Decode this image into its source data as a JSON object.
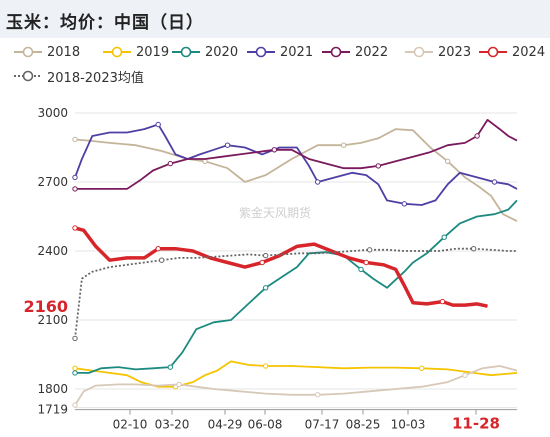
{
  "title": "玉米：均价：中国（日）",
  "watermark": "紫金天风期货",
  "chart_data": {
    "type": "line",
    "title": "玉米：均价：中国（日）",
    "xlabel": "",
    "ylabel": "",
    "ylim": [
      1719,
      3000
    ],
    "yticks": [
      1719,
      1800,
      2100,
      2400,
      2700,
      3000
    ],
    "x_ticks": [
      "02-10",
      "03-20",
      "04-29",
      "06-08",
      "07-17",
      "08-25",
      "10-03",
      "11-28"
    ],
    "highlighted_x_tick": "11-28",
    "last_value_label": "2160",
    "grid": "horizontal",
    "legend_position": "top",
    "series": [
      {
        "name": "2018",
        "color": "#c4b49a",
        "points": [
          [
            0,
            2885
          ],
          [
            8,
            2880
          ],
          [
            20,
            2870
          ],
          [
            35,
            2860
          ],
          [
            50,
            2835
          ],
          [
            65,
            2800
          ],
          [
            75,
            2790
          ],
          [
            88,
            2760
          ],
          [
            98,
            2700
          ],
          [
            110,
            2730
          ],
          [
            125,
            2800
          ],
          [
            140,
            2860
          ],
          [
            155,
            2860
          ],
          [
            165,
            2870
          ],
          [
            175,
            2890
          ],
          [
            185,
            2930
          ],
          [
            195,
            2925
          ],
          [
            205,
            2850
          ],
          [
            215,
            2790
          ],
          [
            225,
            2720
          ],
          [
            233,
            2680
          ],
          [
            240,
            2640
          ],
          [
            247,
            2560
          ],
          [
            255,
            2530
          ]
        ]
      },
      {
        "name": "2019",
        "color": "#f5c400",
        "points": [
          [
            0,
            1890
          ],
          [
            10,
            1880
          ],
          [
            20,
            1870
          ],
          [
            30,
            1860
          ],
          [
            38,
            1830
          ],
          [
            48,
            1810
          ],
          [
            58,
            1810
          ],
          [
            68,
            1830
          ],
          [
            75,
            1860
          ],
          [
            82,
            1880
          ],
          [
            90,
            1920
          ],
          [
            100,
            1905
          ],
          [
            110,
            1900
          ],
          [
            125,
            1900
          ],
          [
            140,
            1895
          ],
          [
            155,
            1890
          ],
          [
            170,
            1893
          ],
          [
            185,
            1893
          ],
          [
            200,
            1890
          ],
          [
            215,
            1885
          ],
          [
            230,
            1870
          ],
          [
            240,
            1860
          ],
          [
            255,
            1870
          ]
        ]
      },
      {
        "name": "2020",
        "color": "#1b8a80",
        "points": [
          [
            0,
            1870
          ],
          [
            8,
            1870
          ],
          [
            15,
            1890
          ],
          [
            25,
            1895
          ],
          [
            35,
            1885
          ],
          [
            45,
            1890
          ],
          [
            55,
            1895
          ],
          [
            62,
            1960
          ],
          [
            70,
            2060
          ],
          [
            80,
            2090
          ],
          [
            90,
            2100
          ],
          [
            100,
            2170
          ],
          [
            110,
            2240
          ],
          [
            120,
            2290
          ],
          [
            128,
            2330
          ],
          [
            135,
            2390
          ],
          [
            145,
            2395
          ],
          [
            155,
            2380
          ],
          [
            165,
            2320
          ],
          [
            172,
            2280
          ],
          [
            180,
            2240
          ],
          [
            190,
            2310
          ],
          [
            195,
            2350
          ],
          [
            203,
            2390
          ],
          [
            213,
            2460
          ],
          [
            222,
            2520
          ],
          [
            232,
            2550
          ],
          [
            242,
            2560
          ],
          [
            250,
            2580
          ],
          [
            255,
            2620
          ]
        ]
      },
      {
        "name": "2021",
        "color": "#4f3fa4",
        "points": [
          [
            0,
            2720
          ],
          [
            4,
            2800
          ],
          [
            10,
            2900
          ],
          [
            20,
            2915
          ],
          [
            30,
            2915
          ],
          [
            40,
            2930
          ],
          [
            48,
            2950
          ],
          [
            52,
            2900
          ],
          [
            58,
            2820
          ],
          [
            65,
            2800
          ],
          [
            72,
            2820
          ],
          [
            80,
            2840
          ],
          [
            88,
            2860
          ],
          [
            98,
            2850
          ],
          [
            108,
            2820
          ],
          [
            118,
            2850
          ],
          [
            128,
            2850
          ],
          [
            135,
            2770
          ],
          [
            140,
            2700
          ],
          [
            150,
            2720
          ],
          [
            160,
            2740
          ],
          [
            168,
            2730
          ],
          [
            175,
            2690
          ],
          [
            180,
            2620
          ],
          [
            190,
            2605
          ],
          [
            200,
            2600
          ],
          [
            208,
            2620
          ],
          [
            215,
            2690
          ],
          [
            222,
            2740
          ],
          [
            232,
            2720
          ],
          [
            242,
            2700
          ],
          [
            250,
            2690
          ],
          [
            255,
            2670
          ]
        ]
      },
      {
        "name": "2022",
        "color": "#7a1a5c",
        "points": [
          [
            0,
            2670
          ],
          [
            10,
            2670
          ],
          [
            20,
            2670
          ],
          [
            30,
            2670
          ],
          [
            38,
            2710
          ],
          [
            45,
            2750
          ],
          [
            55,
            2780
          ],
          [
            65,
            2800
          ],
          [
            75,
            2800
          ],
          [
            85,
            2810
          ],
          [
            95,
            2820
          ],
          [
            105,
            2830
          ],
          [
            115,
            2840
          ],
          [
            125,
            2840
          ],
          [
            135,
            2800
          ],
          [
            145,
            2780
          ],
          [
            155,
            2760
          ],
          [
            165,
            2760
          ],
          [
            175,
            2770
          ],
          [
            185,
            2790
          ],
          [
            195,
            2810
          ],
          [
            205,
            2830
          ],
          [
            215,
            2860
          ],
          [
            225,
            2870
          ],
          [
            232,
            2900
          ],
          [
            238,
            2970
          ],
          [
            245,
            2930
          ],
          [
            250,
            2900
          ],
          [
            255,
            2880
          ]
        ]
      },
      {
        "name": "2023",
        "color": "#d8c8b8",
        "points": [
          [
            0,
            1730
          ],
          [
            5,
            1790
          ],
          [
            12,
            1815
          ],
          [
            25,
            1820
          ],
          [
            35,
            1820
          ],
          [
            48,
            1815
          ],
          [
            60,
            1820
          ],
          [
            70,
            1810
          ],
          [
            80,
            1800
          ],
          [
            95,
            1790
          ],
          [
            110,
            1780
          ],
          [
            125,
            1775
          ],
          [
            140,
            1775
          ],
          [
            155,
            1780
          ],
          [
            170,
            1790
          ],
          [
            185,
            1800
          ],
          [
            200,
            1810
          ],
          [
            215,
            1830
          ],
          [
            225,
            1860
          ],
          [
            235,
            1890
          ],
          [
            245,
            1900
          ],
          [
            255,
            1880
          ]
        ]
      },
      {
        "name": "2024",
        "color": "#d7262b",
        "points": [
          [
            0,
            2500
          ],
          [
            5,
            2490
          ],
          [
            12,
            2420
          ],
          [
            20,
            2360
          ],
          [
            30,
            2370
          ],
          [
            40,
            2370
          ],
          [
            48,
            2410
          ],
          [
            58,
            2410
          ],
          [
            68,
            2400
          ],
          [
            78,
            2370
          ],
          [
            88,
            2350
          ],
          [
            98,
            2330
          ],
          [
            108,
            2350
          ],
          [
            118,
            2380
          ],
          [
            128,
            2420
          ],
          [
            138,
            2430
          ],
          [
            148,
            2400
          ],
          [
            158,
            2370
          ],
          [
            168,
            2350
          ],
          [
            178,
            2340
          ],
          [
            185,
            2320
          ],
          [
            190,
            2250
          ],
          [
            195,
            2175
          ],
          [
            203,
            2170
          ],
          [
            212,
            2180
          ],
          [
            218,
            2165
          ],
          [
            225,
            2165
          ],
          [
            232,
            2170
          ],
          [
            238,
            2160
          ]
        ]
      },
      {
        "name": "2018-2023均值",
        "color": "#666666",
        "dashed": true,
        "points": [
          [
            0,
            2020
          ],
          [
            4,
            2280
          ],
          [
            10,
            2310
          ],
          [
            20,
            2330
          ],
          [
            30,
            2340
          ],
          [
            40,
            2350
          ],
          [
            50,
            2360
          ],
          [
            60,
            2370
          ],
          [
            70,
            2370
          ],
          [
            80,
            2375
          ],
          [
            90,
            2380
          ],
          [
            100,
            2385
          ],
          [
            110,
            2380
          ],
          [
            120,
            2385
          ],
          [
            130,
            2390
          ],
          [
            140,
            2390
          ],
          [
            150,
            2395
          ],
          [
            160,
            2400
          ],
          [
            170,
            2405
          ],
          [
            180,
            2405
          ],
          [
            190,
            2400
          ],
          [
            200,
            2400
          ],
          [
            210,
            2400
          ],
          [
            220,
            2410
          ],
          [
            230,
            2410
          ],
          [
            240,
            2405
          ],
          [
            250,
            2400
          ],
          [
            255,
            2400
          ]
        ]
      }
    ]
  },
  "legend_rows": [
    [
      "2018",
      "2019",
      "2020",
      "2021",
      "2022",
      "2023",
      "2024"
    ],
    [
      "2018-2023均值"
    ]
  ]
}
